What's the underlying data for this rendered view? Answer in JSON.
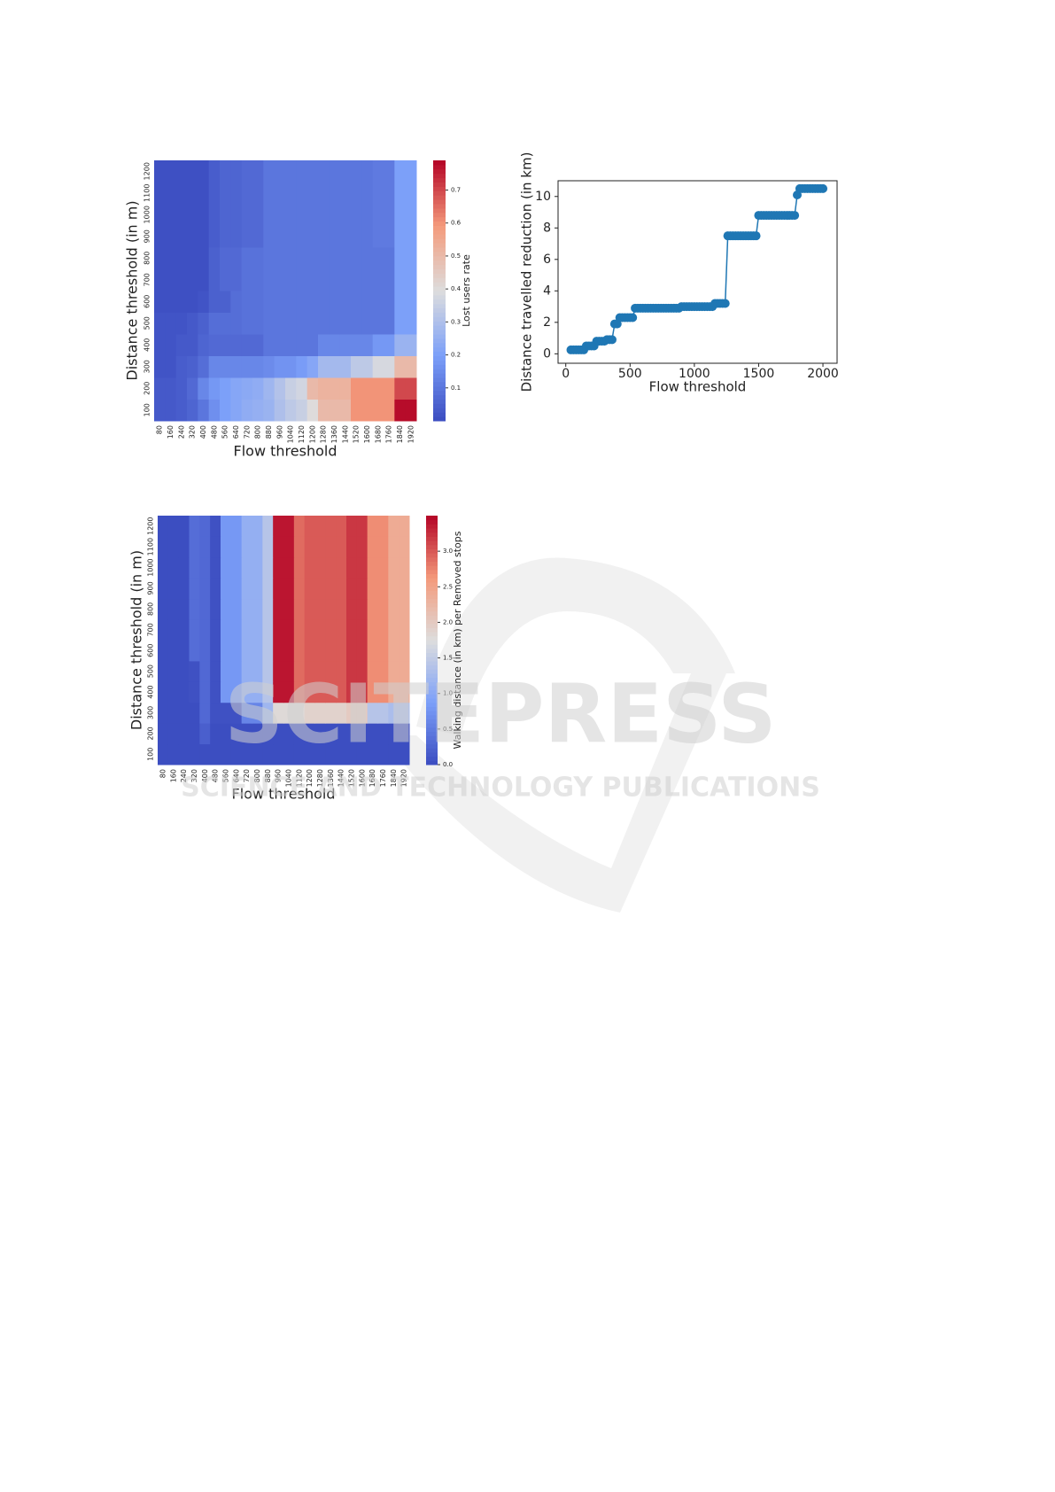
{
  "chart_data": [
    {
      "type": "heatmap",
      "colormap": "coolwarm",
      "xlabel": "Flow threshold",
      "ylabel": "Distance threshold (in m)",
      "colorbar_label": "Lost users rate",
      "x": [
        "80",
        "160",
        "240",
        "320",
        "400",
        "480",
        "560",
        "640",
        "720",
        "800",
        "880",
        "960",
        "1040",
        "1120",
        "1200",
        "1280",
        "1360",
        "1440",
        "1520",
        "1600",
        "1680",
        "1760",
        "1840",
        "1920"
      ],
      "y": [
        "100",
        "200",
        "300",
        "400",
        "500",
        "600",
        "700",
        "800",
        "900",
        "1000",
        "1100",
        "1200"
      ],
      "values": [
        [
          0.03,
          0.03,
          0.04,
          0.06,
          0.1,
          0.16,
          0.2,
          0.22,
          0.24,
          0.25,
          0.26,
          0.3,
          0.33,
          0.35,
          0.4,
          0.5,
          0.5,
          0.5,
          0.6,
          0.6,
          0.6,
          0.6,
          0.78,
          0.78
        ],
        [
          0.03,
          0.03,
          0.04,
          0.07,
          0.14,
          0.18,
          0.2,
          0.22,
          0.23,
          0.24,
          0.27,
          0.31,
          0.35,
          0.37,
          0.5,
          0.52,
          0.52,
          0.52,
          0.6,
          0.6,
          0.6,
          0.6,
          0.7,
          0.7
        ],
        [
          0.02,
          0.02,
          0.04,
          0.05,
          0.08,
          0.14,
          0.14,
          0.14,
          0.14,
          0.14,
          0.15,
          0.17,
          0.17,
          0.19,
          0.22,
          0.28,
          0.28,
          0.28,
          0.33,
          0.33,
          0.38,
          0.38,
          0.5,
          0.5
        ],
        [
          0.02,
          0.02,
          0.03,
          0.03,
          0.06,
          0.07,
          0.07,
          0.07,
          0.07,
          0.07,
          0.1,
          0.1,
          0.1,
          0.1,
          0.1,
          0.14,
          0.14,
          0.14,
          0.14,
          0.14,
          0.18,
          0.18,
          0.26,
          0.26
        ],
        [
          0.02,
          0.02,
          0.02,
          0.03,
          0.05,
          0.08,
          0.08,
          0.08,
          0.09,
          0.09,
          0.1,
          0.1,
          0.1,
          0.1,
          0.1,
          0.1,
          0.1,
          0.1,
          0.1,
          0.1,
          0.1,
          0.1,
          0.2,
          0.2
        ],
        [
          0.01,
          0.01,
          0.01,
          0.01,
          0.02,
          0.05,
          0.05,
          0.08,
          0.09,
          0.09,
          0.1,
          0.1,
          0.1,
          0.1,
          0.1,
          0.1,
          0.1,
          0.1,
          0.1,
          0.1,
          0.1,
          0.1,
          0.2,
          0.2
        ],
        [
          0.01,
          0.01,
          0.01,
          0.01,
          0.01,
          0.05,
          0.07,
          0.07,
          0.09,
          0.09,
          0.1,
          0.1,
          0.1,
          0.1,
          0.1,
          0.1,
          0.1,
          0.1,
          0.1,
          0.1,
          0.1,
          0.1,
          0.2,
          0.2
        ],
        [
          0.01,
          0.01,
          0.01,
          0.01,
          0.01,
          0.05,
          0.07,
          0.07,
          0.09,
          0.09,
          0.1,
          0.1,
          0.1,
          0.1,
          0.1,
          0.1,
          0.1,
          0.1,
          0.1,
          0.1,
          0.1,
          0.1,
          0.2,
          0.2
        ],
        [
          0.01,
          0.01,
          0.01,
          0.01,
          0.01,
          0.04,
          0.06,
          0.06,
          0.07,
          0.07,
          0.1,
          0.1,
          0.1,
          0.1,
          0.1,
          0.1,
          0.1,
          0.1,
          0.1,
          0.1,
          0.11,
          0.11,
          0.2,
          0.2
        ],
        [
          0.01,
          0.01,
          0.01,
          0.01,
          0.01,
          0.04,
          0.06,
          0.06,
          0.07,
          0.07,
          0.1,
          0.1,
          0.1,
          0.1,
          0.1,
          0.1,
          0.1,
          0.1,
          0.1,
          0.1,
          0.11,
          0.11,
          0.2,
          0.2
        ],
        [
          0.01,
          0.01,
          0.01,
          0.01,
          0.01,
          0.04,
          0.06,
          0.06,
          0.07,
          0.07,
          0.1,
          0.1,
          0.1,
          0.1,
          0.1,
          0.1,
          0.1,
          0.1,
          0.1,
          0.1,
          0.11,
          0.11,
          0.2,
          0.2
        ],
        [
          0.01,
          0.01,
          0.01,
          0.01,
          0.01,
          0.04,
          0.06,
          0.06,
          0.07,
          0.07,
          0.1,
          0.1,
          0.1,
          0.1,
          0.1,
          0.1,
          0.1,
          0.1,
          0.1,
          0.1,
          0.11,
          0.11,
          0.2,
          0.2
        ]
      ],
      "vlim": [
        0,
        0.79
      ],
      "cticks": [
        0.1,
        0.2,
        0.3,
        0.4,
        0.5,
        0.6,
        0.7
      ]
    },
    {
      "type": "line",
      "color": "#1f77b4",
      "xlabel": "Flow threshold",
      "ylabel": "Distance travelled reduction (in km)",
      "x": [
        40,
        60,
        80,
        100,
        120,
        140,
        160,
        180,
        200,
        220,
        240,
        260,
        280,
        300,
        320,
        340,
        360,
        380,
        400,
        420,
        440,
        460,
        480,
        500,
        520,
        540,
        560,
        580,
        600,
        620,
        640,
        660,
        680,
        700,
        720,
        740,
        760,
        780,
        800,
        820,
        840,
        860,
        880,
        900,
        920,
        940,
        960,
        980,
        1000,
        1020,
        1040,
        1060,
        1080,
        1100,
        1120,
        1140,
        1160,
        1180,
        1200,
        1220,
        1240,
        1260,
        1280,
        1300,
        1320,
        1340,
        1360,
        1380,
        1400,
        1420,
        1440,
        1460,
        1480,
        1500,
        1520,
        1540,
        1560,
        1580,
        1600,
        1620,
        1640,
        1660,
        1680,
        1700,
        1720,
        1740,
        1760,
        1780,
        1800,
        1820,
        1840,
        1860,
        1880,
        1900,
        1920,
        1940,
        1960,
        1980,
        2000
      ],
      "values": [
        0.25,
        0.25,
        0.25,
        0.25,
        0.25,
        0.25,
        0.5,
        0.5,
        0.5,
        0.5,
        0.8,
        0.8,
        0.8,
        0.8,
        0.9,
        0.9,
        0.9,
        1.9,
        1.9,
        2.3,
        2.3,
        2.3,
        2.3,
        2.3,
        2.3,
        2.9,
        2.9,
        2.9,
        2.9,
        2.9,
        2.9,
        2.9,
        2.9,
        2.9,
        2.9,
        2.9,
        2.9,
        2.9,
        2.9,
        2.9,
        2.9,
        2.9,
        2.9,
        3.0,
        3.0,
        3.0,
        3.0,
        3.0,
        3.0,
        3.0,
        3.0,
        3.0,
        3.0,
        3.0,
        3.0,
        3.0,
        3.2,
        3.2,
        3.2,
        3.2,
        3.2,
        7.5,
        7.5,
        7.5,
        7.5,
        7.5,
        7.5,
        7.5,
        7.5,
        7.5,
        7.5,
        7.5,
        7.5,
        8.8,
        8.8,
        8.8,
        8.8,
        8.8,
        8.8,
        8.8,
        8.8,
        8.8,
        8.8,
        8.8,
        8.8,
        8.8,
        8.8,
        8.8,
        10.1,
        10.5,
        10.5,
        10.5,
        10.5,
        10.5,
        10.5,
        10.5,
        10.5,
        10.5,
        10.5
      ],
      "xlim": [
        -60,
        2110
      ],
      "xticks": [
        0,
        500,
        1000,
        1500,
        2000
      ],
      "ylim": [
        -0.6,
        11
      ],
      "yticks": [
        0,
        2,
        4,
        6,
        8,
        10
      ]
    },
    {
      "type": "heatmap",
      "colormap": "coolwarm",
      "xlabel": "Flow threshold",
      "ylabel": "Distance threshold (in m)",
      "colorbar_label": "Walking distance (in km) per Removed stops",
      "x": [
        "80",
        "160",
        "240",
        "320",
        "400",
        "480",
        "560",
        "640",
        "720",
        "800",
        "880",
        "960",
        "1040",
        "1120",
        "1200",
        "1280",
        "1360",
        "1440",
        "1520",
        "1600",
        "1680",
        "1760",
        "1840",
        "1920"
      ],
      "y": [
        "100",
        "200",
        "300",
        "400",
        "500",
        "600",
        "700",
        "800",
        "900",
        "1000",
        "1100",
        "1200"
      ],
      "values": [
        [
          0.02,
          0.02,
          0.02,
          0.02,
          0.02,
          0.02,
          0.02,
          0.02,
          0.02,
          0.02,
          0.02,
          0.02,
          0.02,
          0.02,
          0.02,
          0.02,
          0.02,
          0.02,
          0.02,
          0.02,
          0.02,
          0.02,
          0.02,
          0.02
        ],
        [
          0.02,
          0.02,
          0.02,
          0.02,
          0.2,
          0.02,
          0.02,
          0.02,
          0.02,
          0.02,
          0.02,
          0.02,
          0.02,
          0.02,
          0.02,
          0.02,
          0.02,
          0.02,
          0.02,
          0.02,
          0.02,
          0.02,
          0.02,
          0.02
        ],
        [
          0.02,
          0.02,
          0.02,
          0.02,
          0.3,
          0.05,
          0.05,
          0.05,
          0.6,
          0.6,
          1.2,
          1.8,
          1.8,
          1.8,
          1.9,
          1.9,
          1.9,
          1.9,
          2.0,
          2.0,
          1.4,
          1.4,
          1.3,
          1.3
        ],
        [
          0.02,
          0.02,
          0.02,
          0.05,
          0.3,
          0.05,
          0.8,
          0.8,
          1.1,
          1.1,
          1.4,
          3.4,
          3.4,
          2.9,
          3.0,
          3.0,
          3.0,
          3.0,
          3.2,
          3.2,
          2.7,
          2.7,
          2.4,
          2.4
        ],
        [
          0.02,
          0.02,
          0.02,
          0.05,
          0.3,
          0.05,
          0.8,
          0.8,
          1.1,
          1.1,
          1.4,
          3.4,
          3.4,
          2.9,
          3.0,
          3.0,
          3.0,
          3.0,
          3.2,
          3.2,
          2.7,
          2.7,
          2.4,
          2.4
        ],
        [
          0.02,
          0.02,
          0.02,
          0.35,
          0.3,
          0.05,
          0.8,
          0.8,
          1.1,
          1.1,
          1.4,
          3.4,
          3.4,
          2.9,
          3.0,
          3.0,
          3.0,
          3.0,
          3.2,
          3.2,
          2.7,
          2.7,
          2.4,
          2.4
        ],
        [
          0.02,
          0.02,
          0.02,
          0.35,
          0.3,
          0.05,
          0.8,
          0.8,
          1.1,
          1.1,
          1.4,
          3.4,
          3.4,
          2.9,
          3.0,
          3.0,
          3.0,
          3.0,
          3.2,
          3.2,
          2.7,
          2.7,
          2.4,
          2.4
        ],
        [
          0.02,
          0.02,
          0.02,
          0.35,
          0.3,
          0.05,
          0.8,
          0.8,
          1.1,
          1.1,
          1.4,
          3.4,
          3.4,
          2.9,
          3.0,
          3.0,
          3.0,
          3.0,
          3.2,
          3.2,
          2.7,
          2.7,
          2.4,
          2.4
        ],
        [
          0.02,
          0.02,
          0.02,
          0.35,
          0.3,
          0.05,
          0.8,
          0.8,
          1.1,
          1.1,
          1.4,
          3.4,
          3.4,
          2.9,
          3.0,
          3.0,
          3.0,
          3.0,
          3.2,
          3.2,
          2.7,
          2.7,
          2.4,
          2.4
        ],
        [
          0.02,
          0.02,
          0.02,
          0.35,
          0.3,
          0.05,
          0.8,
          0.8,
          1.1,
          1.1,
          1.4,
          3.4,
          3.4,
          2.9,
          3.0,
          3.0,
          3.0,
          3.0,
          3.2,
          3.2,
          2.7,
          2.7,
          2.4,
          2.4
        ],
        [
          0.02,
          0.02,
          0.02,
          0.35,
          0.3,
          0.05,
          0.8,
          0.8,
          1.1,
          1.1,
          1.4,
          3.4,
          3.4,
          2.9,
          3.0,
          3.0,
          3.0,
          3.0,
          3.2,
          3.2,
          2.7,
          2.7,
          2.4,
          2.4
        ],
        [
          0.02,
          0.02,
          0.02,
          0.35,
          0.3,
          0.05,
          0.8,
          0.8,
          1.1,
          1.1,
          1.4,
          3.4,
          3.4,
          2.9,
          3.0,
          3.0,
          3.0,
          3.0,
          3.2,
          3.2,
          2.7,
          2.7,
          2.4,
          2.4
        ]
      ],
      "vlim": [
        0,
        3.5
      ],
      "cticks": [
        {
          "value": 0,
          "label": "0.0"
        },
        0.5,
        {
          "value": 1,
          "label": "1.0"
        },
        1.5,
        {
          "value": 2,
          "label": "2.0"
        },
        2.5,
        {
          "value": 3,
          "label": "3.0"
        }
      ]
    }
  ],
  "watermark": {
    "title": "SCITEPRESS",
    "subtitle": "SCIENCE AND TECHNOLOGY PUBLICATIONS"
  }
}
